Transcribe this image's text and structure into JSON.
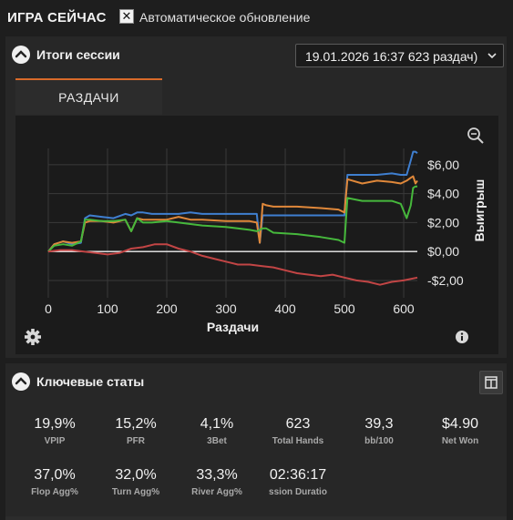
{
  "header": {
    "title": "ИГРА СЕЙЧАС",
    "checkbox_mark": "✕",
    "auto_refresh_label": "Автоматическое обновление"
  },
  "session_panel": {
    "title": "Итоги сессии",
    "session_select_value": "19.01.2026 16:37 623 раздач)",
    "tab_label": "РАЗДАЧИ"
  },
  "chart_data": {
    "type": "line",
    "xlabel": "Раздачи",
    "ylabel": "Выигрыш",
    "xlim": [
      0,
      623
    ],
    "ylim": [
      -3.2,
      7.0
    ],
    "x_ticks": [
      0,
      100,
      200,
      300,
      400,
      500,
      600
    ],
    "x_tick_labels": [
      "0",
      "100",
      "200",
      "300",
      "400",
      "500",
      "600"
    ],
    "y_ticks": [
      6,
      4,
      2,
      0,
      -2
    ],
    "y_tick_labels": [
      "$6,00",
      "$4,00",
      "$2,00",
      "$0,00",
      "-$2,00"
    ],
    "grid": true,
    "zero_line": true,
    "series": [
      {
        "color": "#3f7fd0",
        "x": [
          0,
          10,
          25,
          40,
          55,
          62,
          70,
          90,
          110,
          130,
          140,
          150,
          160,
          175,
          200,
          220,
          240,
          260,
          300,
          340,
          352,
          357,
          362,
          368,
          380,
          420,
          460,
          490,
          500,
          505,
          530,
          555,
          580,
          595,
          605,
          612,
          616,
          620,
          623
        ],
        "y": [
          0,
          0.5,
          0.7,
          0.5,
          0.6,
          2.3,
          2.5,
          2.4,
          2.3,
          2.6,
          2.5,
          2.7,
          2.7,
          2.6,
          2.6,
          2.6,
          2.7,
          2.6,
          2.6,
          2.6,
          2.6,
          0.6,
          2.5,
          2.5,
          2.5,
          2.5,
          2.5,
          2.5,
          2.5,
          5.3,
          5.3,
          5.3,
          5.4,
          5.3,
          5.3,
          6.3,
          6.9,
          6.9,
          6.8
        ]
      },
      {
        "color": "#e0883a",
        "x": [
          0,
          10,
          25,
          40,
          55,
          62,
          70,
          90,
          110,
          130,
          140,
          150,
          160,
          175,
          200,
          220,
          240,
          260,
          300,
          340,
          352,
          357,
          362,
          368,
          380,
          420,
          460,
          490,
          500,
          505,
          530,
          555,
          580,
          595,
          605,
          612,
          616,
          620,
          623
        ],
        "y": [
          0,
          0.5,
          0.7,
          0.6,
          0.7,
          2.0,
          2.1,
          2.1,
          2.0,
          2.2,
          1.4,
          2.3,
          2.2,
          2.2,
          2.2,
          2.4,
          2.2,
          2.2,
          2.1,
          2.1,
          2.0,
          0.6,
          3.3,
          3.2,
          3.1,
          3.1,
          3.0,
          2.9,
          2.7,
          5.0,
          4.7,
          4.9,
          4.8,
          4.7,
          4.9,
          5.1,
          5.2,
          4.7,
          4.9
        ]
      },
      {
        "color": "#46b83c",
        "x": [
          0,
          10,
          25,
          40,
          55,
          62,
          70,
          90,
          110,
          130,
          140,
          150,
          160,
          175,
          200,
          220,
          240,
          260,
          300,
          340,
          352,
          357,
          362,
          368,
          380,
          420,
          460,
          490,
          500,
          505,
          530,
          555,
          580,
          595,
          605,
          612,
          616,
          620,
          623
        ],
        "y": [
          0,
          0.4,
          0.5,
          0.4,
          0.7,
          2.2,
          2.2,
          2.1,
          2.1,
          2.2,
          1.4,
          2.3,
          2.0,
          2.0,
          2.1,
          2.0,
          1.9,
          1.8,
          1.7,
          1.5,
          1.4,
          1.5,
          1.6,
          1.6,
          1.3,
          1.2,
          1.0,
          0.8,
          0.6,
          3.7,
          3.5,
          3.5,
          3.5,
          3.3,
          2.3,
          3.2,
          4.4,
          4.5,
          4.5
        ]
      },
      {
        "color": "#c24545",
        "x": [
          0,
          20,
          40,
          60,
          80,
          100,
          120,
          140,
          160,
          180,
          200,
          220,
          240,
          260,
          280,
          300,
          320,
          340,
          360,
          380,
          400,
          420,
          440,
          460,
          480,
          500,
          520,
          540,
          560,
          580,
          600,
          623
        ],
        "y": [
          0,
          0.1,
          0.1,
          0.0,
          -0.1,
          -0.2,
          -0.1,
          0.2,
          0.3,
          0.5,
          0.5,
          0.2,
          0.0,
          -0.3,
          -0.5,
          -0.7,
          -0.9,
          -0.9,
          -1.0,
          -1.1,
          -1.3,
          -1.5,
          -1.6,
          -1.7,
          -1.6,
          -1.8,
          -2.0,
          -2.1,
          -2.3,
          -2.1,
          -2.0,
          -1.8
        ]
      }
    ]
  },
  "key_stats_panel": {
    "title": "Ключевые статы",
    "stats_row1": [
      {
        "value": "19,9%",
        "label": "VPIP"
      },
      {
        "value": "15,2%",
        "label": "PFR"
      },
      {
        "value": "4,1%",
        "label": "3Bet"
      },
      {
        "value": "623",
        "label": "Total Hands"
      },
      {
        "value": "39,3",
        "label": "bb/100"
      },
      {
        "value": "$4.90",
        "label": "Net Won"
      }
    ],
    "stats_row2": [
      {
        "value": "37,0%",
        "label": "Flop Agg%"
      },
      {
        "value": "32,0%",
        "label": "Turn Agg%"
      },
      {
        "value": "33,3%",
        "label": "River Agg%"
      },
      {
        "value": "02:36:17",
        "label": "ssion Duratio"
      }
    ]
  }
}
